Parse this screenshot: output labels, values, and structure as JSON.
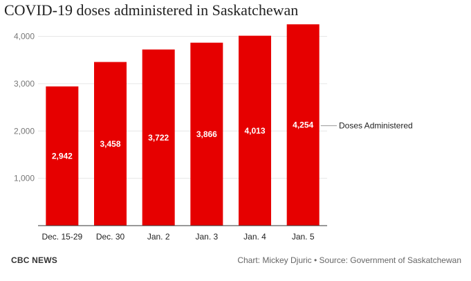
{
  "header": {
    "title": "COVID-19 doses administered in Saskatchewan"
  },
  "footer": {
    "publisher": "CBC NEWS",
    "credit": "Chart: Mickey Djuric • Source: Government of Saskatchewan"
  },
  "chart_data": {
    "type": "bar",
    "categories": [
      "Dec. 15-29",
      "Dec. 30",
      "Jan. 2",
      "Jan. 3",
      "Jan. 4",
      "Jan. 5"
    ],
    "series": [
      {
        "name": "Doses Administered",
        "values": [
          2942,
          3458,
          3722,
          3866,
          4013,
          4254
        ]
      }
    ],
    "data_labels": [
      "2,942",
      "3,458",
      "3,722",
      "3,866",
      "4,013",
      "4,254"
    ],
    "yticks": [
      1000,
      2000,
      3000,
      4000
    ],
    "ytick_labels": [
      "1,000",
      "2,000",
      "3,000",
      "4,000"
    ],
    "ylim": [
      0,
      4300
    ],
    "grid": true,
    "legend": "right",
    "bar_color": "#e60000",
    "grid_color": "#e6e6e6"
  }
}
